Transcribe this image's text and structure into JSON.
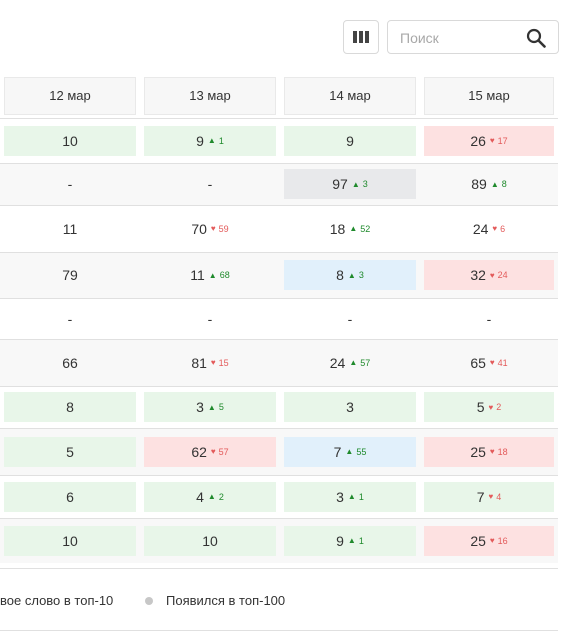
{
  "toolbar": {
    "search_placeholder": "Поиск",
    "columns_icon": "columns-icon",
    "search_icon": "search-icon"
  },
  "columns": [
    "12 мар",
    "13 мар",
    "14 мар",
    "15 мар"
  ],
  "rows": [
    {
      "alt": false,
      "cells": [
        {
          "value": "10",
          "bg": "green",
          "delta": ""
        },
        {
          "value": "9",
          "bg": "green",
          "delta": "1",
          "dir": "up"
        },
        {
          "value": "9",
          "bg": "green",
          "delta": ""
        },
        {
          "value": "26",
          "bg": "red",
          "delta": "17",
          "dir": "down"
        }
      ]
    },
    {
      "alt": true,
      "cells": [
        {
          "value": "-",
          "bg": "",
          "delta": ""
        },
        {
          "value": "-",
          "bg": "",
          "delta": ""
        },
        {
          "value": "97",
          "bg": "gray",
          "delta": "3",
          "dir": "up"
        },
        {
          "value": "89",
          "bg": "",
          "delta": "8",
          "dir": "up"
        }
      ]
    },
    {
      "alt": false,
      "cells": [
        {
          "value": "11",
          "bg": "",
          "delta": ""
        },
        {
          "value": "70",
          "bg": "",
          "delta": "59",
          "dir": "down"
        },
        {
          "value": "18",
          "bg": "",
          "delta": "52",
          "dir": "up"
        },
        {
          "value": "24",
          "bg": "",
          "delta": "6",
          "dir": "down"
        }
      ]
    },
    {
      "alt": true,
      "cells": [
        {
          "value": "79",
          "bg": "",
          "delta": ""
        },
        {
          "value": "11",
          "bg": "",
          "delta": "68",
          "dir": "up"
        },
        {
          "value": "8",
          "bg": "blue",
          "delta": "3",
          "dir": "up"
        },
        {
          "value": "32",
          "bg": "red",
          "delta": "24",
          "dir": "down"
        }
      ]
    },
    {
      "alt": false,
      "cells": [
        {
          "value": "-",
          "bg": "",
          "delta": ""
        },
        {
          "value": "-",
          "bg": "",
          "delta": ""
        },
        {
          "value": "-",
          "bg": "",
          "delta": ""
        },
        {
          "value": "-",
          "bg": "",
          "delta": ""
        }
      ]
    },
    {
      "alt": true,
      "cells": [
        {
          "value": "66",
          "bg": "",
          "delta": ""
        },
        {
          "value": "81",
          "bg": "",
          "delta": "15",
          "dir": "down"
        },
        {
          "value": "24",
          "bg": "",
          "delta": "57",
          "dir": "up"
        },
        {
          "value": "65",
          "bg": "",
          "delta": "41",
          "dir": "down"
        }
      ]
    },
    {
      "alt": false,
      "cells": [
        {
          "value": "8",
          "bg": "green",
          "delta": ""
        },
        {
          "value": "3",
          "bg": "green",
          "delta": "5",
          "dir": "up"
        },
        {
          "value": "3",
          "bg": "green",
          "delta": ""
        },
        {
          "value": "5",
          "bg": "green",
          "delta": "2",
          "dir": "down"
        }
      ]
    },
    {
      "alt": true,
      "cells": [
        {
          "value": "5",
          "bg": "green",
          "delta": ""
        },
        {
          "value": "62",
          "bg": "red",
          "delta": "57",
          "dir": "down"
        },
        {
          "value": "7",
          "bg": "blue",
          "delta": "55",
          "dir": "up"
        },
        {
          "value": "25",
          "bg": "red",
          "delta": "18",
          "dir": "down"
        }
      ]
    },
    {
      "alt": false,
      "cells": [
        {
          "value": "6",
          "bg": "green",
          "delta": ""
        },
        {
          "value": "4",
          "bg": "green",
          "delta": "2",
          "dir": "up"
        },
        {
          "value": "3",
          "bg": "green",
          "delta": "1",
          "dir": "up"
        },
        {
          "value": "7",
          "bg": "green",
          "delta": "4",
          "dir": "down"
        }
      ]
    },
    {
      "alt": true,
      "cells": [
        {
          "value": "10",
          "bg": "green",
          "delta": ""
        },
        {
          "value": "10",
          "bg": "green",
          "delta": ""
        },
        {
          "value": "9",
          "bg": "green",
          "delta": "1",
          "dir": "up"
        },
        {
          "value": "25",
          "bg": "red",
          "delta": "16",
          "dir": "down"
        }
      ]
    }
  ],
  "legend": {
    "new_top10": "вое слово в топ-10",
    "appeared_top100": "Появился в топ-100"
  },
  "colors": {
    "green": "#e8f6e9",
    "red": "#fde1e1",
    "blue": "#e1f0fb",
    "gray": "#e8e9eb",
    "up": "#1f8a2c",
    "down": "#e35a5a"
  }
}
